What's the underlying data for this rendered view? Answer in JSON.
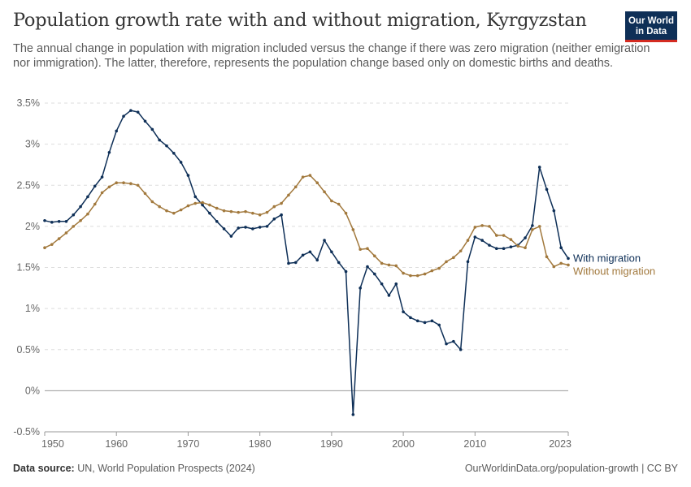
{
  "header": {
    "title": "Population growth rate with and without migration, Kyrgyzstan",
    "subtitle": "The annual change in population with migration included versus the change if there was zero migration (neither emigration nor immigration). The latter, therefore, represents the population change based only on domestic births and deaths.",
    "logo_line1": "Our World",
    "logo_line2": "in Data",
    "logo_bg": "#0e2f57",
    "logo_accent": "#d42b21"
  },
  "footer": {
    "source_label": "Data source:",
    "source_text": "UN, World Population Prospects (2024)",
    "url_text": "OurWorldinData.org/population-growth | CC BY"
  },
  "chart_data": {
    "type": "line",
    "title": "",
    "xlabel": "",
    "ylabel": "",
    "xlim": [
      1950,
      2023
    ],
    "ylim": [
      -0.5,
      3.5
    ],
    "grid": true,
    "legend_placement": "right end labels",
    "y_ticks": [
      {
        "value": -0.5,
        "label": "-0.5%"
      },
      {
        "value": 0,
        "label": "0%"
      },
      {
        "value": 0.5,
        "label": "0.5%"
      },
      {
        "value": 1,
        "label": "1%"
      },
      {
        "value": 1.5,
        "label": "1.5%"
      },
      {
        "value": 2,
        "label": "2%"
      },
      {
        "value": 2.5,
        "label": "2.5%"
      },
      {
        "value": 3,
        "label": "3%"
      },
      {
        "value": 3.5,
        "label": "3.5%"
      }
    ],
    "x_ticks": [
      {
        "value": 1950,
        "label": "1950"
      },
      {
        "value": 1960,
        "label": "1960"
      },
      {
        "value": 1970,
        "label": "1970"
      },
      {
        "value": 1980,
        "label": "1980"
      },
      {
        "value": 1990,
        "label": "1990"
      },
      {
        "value": 2000,
        "label": "2000"
      },
      {
        "value": 2010,
        "label": "2010"
      },
      {
        "value": 2023,
        "label": "2023"
      }
    ],
    "x_start_year": 1950,
    "series": [
      {
        "name": "With migration",
        "color": "#0e2f57",
        "values": [
          2.07,
          2.05,
          2.06,
          2.06,
          2.14,
          2.24,
          2.36,
          2.49,
          2.6,
          2.9,
          3.16,
          3.34,
          3.41,
          3.39,
          3.28,
          3.18,
          3.05,
          2.98,
          2.89,
          2.78,
          2.62,
          2.36,
          2.26,
          2.16,
          2.06,
          1.97,
          1.88,
          1.98,
          1.99,
          1.97,
          1.99,
          2.0,
          2.09,
          2.14,
          1.55,
          1.56,
          1.65,
          1.69,
          1.59,
          1.83,
          1.69,
          1.56,
          1.45,
          -0.29,
          1.25,
          1.51,
          1.42,
          1.3,
          1.16,
          1.3,
          0.96,
          0.89,
          0.85,
          0.83,
          0.85,
          0.8,
          0.57,
          0.6,
          0.5,
          1.57,
          1.87,
          1.83,
          1.77,
          1.73,
          1.73,
          1.75,
          1.77,
          1.86,
          2.01,
          2.72,
          2.45,
          2.19,
          1.74,
          1.61
        ]
      },
      {
        "name": "Without migration",
        "color": "#a2793d",
        "values": [
          1.74,
          1.78,
          1.85,
          1.92,
          2.0,
          2.07,
          2.15,
          2.27,
          2.41,
          2.48,
          2.53,
          2.53,
          2.52,
          2.5,
          2.4,
          2.3,
          2.24,
          2.19,
          2.16,
          2.2,
          2.25,
          2.28,
          2.29,
          2.26,
          2.22,
          2.19,
          2.18,
          2.17,
          2.18,
          2.16,
          2.14,
          2.17,
          2.24,
          2.28,
          2.38,
          2.48,
          2.6,
          2.62,
          2.53,
          2.42,
          2.31,
          2.27,
          2.16,
          1.96,
          1.72,
          1.73,
          1.64,
          1.55,
          1.53,
          1.52,
          1.43,
          1.4,
          1.4,
          1.42,
          1.46,
          1.49,
          1.57,
          1.62,
          1.7,
          1.83,
          1.99,
          2.01,
          2.0,
          1.89,
          1.89,
          1.84,
          1.76,
          1.74,
          1.96,
          2.0,
          1.63,
          1.51,
          1.55,
          1.53
        ]
      }
    ]
  }
}
